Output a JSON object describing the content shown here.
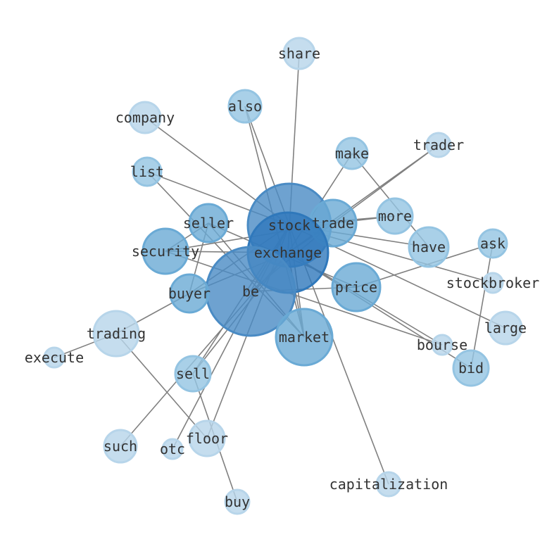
{
  "diagram": {
    "type": "network",
    "node_color_scale": [
      "#b7d5ea",
      "#94c4e2",
      "#6aaad5",
      "#4a8bc4",
      "#2f78bb"
    ],
    "edge_color": "#808080",
    "nodes": [
      {
        "id": "share",
        "label": "share",
        "level": 0
      },
      {
        "id": "also",
        "label": "also",
        "level": 1
      },
      {
        "id": "company",
        "label": "company",
        "level": 0
      },
      {
        "id": "make",
        "label": "make",
        "level": 1
      },
      {
        "id": "trader",
        "label": "trader",
        "level": 0
      },
      {
        "id": "list",
        "label": "list",
        "level": 1
      },
      {
        "id": "stock",
        "label": "stock",
        "level": 3
      },
      {
        "id": "trade",
        "label": "trade",
        "level": 2
      },
      {
        "id": "more",
        "label": "more",
        "level": 1
      },
      {
        "id": "seller",
        "label": "seller",
        "level": 2
      },
      {
        "id": "security",
        "label": "security",
        "level": 2
      },
      {
        "id": "exchange",
        "label": "exchange",
        "level": 4
      },
      {
        "id": "have",
        "label": "have",
        "level": 1
      },
      {
        "id": "ask",
        "label": "ask",
        "level": 1
      },
      {
        "id": "stockbroker",
        "label": "stockbroker",
        "level": 0
      },
      {
        "id": "be",
        "label": "be",
        "level": 3
      },
      {
        "id": "buyer",
        "label": "buyer",
        "level": 2
      },
      {
        "id": "price",
        "label": "price",
        "level": 2
      },
      {
        "id": "trading",
        "label": "trading",
        "level": 0
      },
      {
        "id": "large",
        "label": "large",
        "level": 0
      },
      {
        "id": "market",
        "label": "market",
        "level": 2
      },
      {
        "id": "bourse",
        "label": "bourse",
        "level": 0
      },
      {
        "id": "bid",
        "label": "bid",
        "level": 1
      },
      {
        "id": "execute",
        "label": "execute",
        "level": 0
      },
      {
        "id": "sell",
        "label": "sell",
        "level": 1
      },
      {
        "id": "such",
        "label": "such",
        "level": 0
      },
      {
        "id": "floor",
        "label": "floor",
        "level": 0
      },
      {
        "id": "otc",
        "label": "otc",
        "level": 0
      },
      {
        "id": "buy",
        "label": "buy",
        "level": 0
      },
      {
        "id": "capitalization",
        "label": "capitalization",
        "level": 0
      }
    ],
    "edges": [
      [
        "share",
        "exchange"
      ],
      [
        "also",
        "stock"
      ],
      [
        "also",
        "market"
      ],
      [
        "company",
        "stock"
      ],
      [
        "make",
        "exchange"
      ],
      [
        "make",
        "have"
      ],
      [
        "trader",
        "trade"
      ],
      [
        "trader",
        "exchange"
      ],
      [
        "list",
        "stock"
      ],
      [
        "list",
        "market"
      ],
      [
        "seller",
        "security"
      ],
      [
        "seller",
        "buyer"
      ],
      [
        "seller",
        "market"
      ],
      [
        "seller",
        "price"
      ],
      [
        "security",
        "exchange"
      ],
      [
        "security",
        "trade"
      ],
      [
        "security",
        "bourse"
      ],
      [
        "trading",
        "buyer"
      ],
      [
        "trading",
        "floor"
      ],
      [
        "execute",
        "trading"
      ],
      [
        "sell",
        "buy"
      ],
      [
        "sell",
        "exchange"
      ],
      [
        "such",
        "exchange"
      ],
      [
        "otc",
        "stock"
      ],
      [
        "floor",
        "stock"
      ],
      [
        "capitalization",
        "stock"
      ],
      [
        "market",
        "exchange"
      ],
      [
        "market",
        "stock"
      ],
      [
        "ask",
        "bid"
      ],
      [
        "ask",
        "price"
      ],
      [
        "have",
        "stock"
      ],
      [
        "more",
        "trade"
      ],
      [
        "more",
        "stock"
      ],
      [
        "stockbroker",
        "stock"
      ],
      [
        "large",
        "stock"
      ],
      [
        "bourse",
        "exchange"
      ],
      [
        "bid",
        "exchange"
      ],
      [
        "be",
        "price"
      ],
      [
        "buyer",
        "exchange"
      ],
      [
        "buyer",
        "stock"
      ],
      [
        "be",
        "trade"
      ],
      [
        "trade",
        "exchange"
      ],
      [
        "sell",
        "stock"
      ],
      [
        "be",
        "stock"
      ]
    ]
  }
}
